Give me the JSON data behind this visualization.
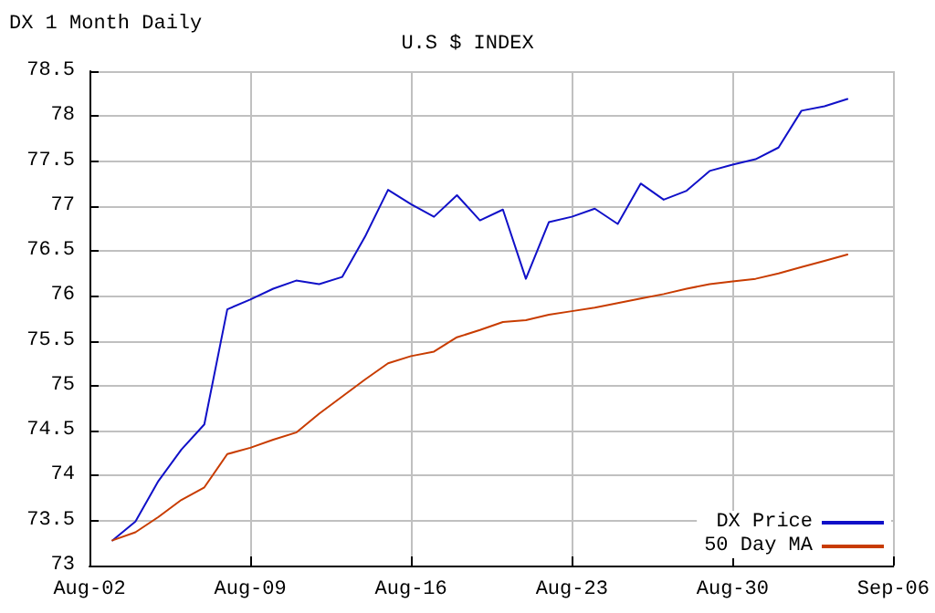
{
  "chart_data": {
    "type": "line",
    "title": "U.S $ INDEX",
    "subtitle": "DX 1 Month Daily",
    "x": [
      "--08-03",
      "--08-04",
      "--08-05",
      "--08-06",
      "--08-07",
      "--08-08",
      "--08-09",
      "--08-10",
      "--08-11",
      "--08-12",
      "--08-13",
      "--08-14",
      "--08-15",
      "--08-16",
      "--08-17",
      "--08-18",
      "--08-19",
      "--08-20",
      "--08-21",
      "--08-22",
      "--08-23",
      "--08-24",
      "--08-25",
      "--08-26",
      "--08-27",
      "--08-28",
      "--08-29",
      "--08-30",
      "--08-31",
      "--09-01",
      "--09-02",
      "--09-03",
      "--09-04"
    ],
    "series": [
      {
        "name": "DX Price",
        "color": "#1010c8",
        "values": [
          73.28,
          73.49,
          73.94,
          74.29,
          74.57,
          75.85,
          75.96,
          76.08,
          76.17,
          76.13,
          76.21,
          76.66,
          77.18,
          77.02,
          76.88,
          77.12,
          76.84,
          76.96,
          76.19,
          76.82,
          76.88,
          76.97,
          76.8,
          77.25,
          77.07,
          77.17,
          77.39,
          77.46,
          77.52,
          77.65,
          78.06,
          78.11,
          78.19
        ]
      },
      {
        "name": "50 Day MA",
        "color": "#c83c00",
        "values": [
          73.28,
          73.37,
          73.54,
          73.73,
          73.87,
          74.24,
          74.31,
          74.4,
          74.48,
          74.69,
          74.88,
          75.07,
          75.25,
          75.33,
          75.38,
          75.54,
          75.62,
          75.71,
          75.73,
          75.79,
          75.83,
          75.87,
          75.92,
          75.97,
          76.02,
          76.08,
          76.13,
          76.16,
          76.19,
          76.25,
          76.32,
          76.39,
          76.46
        ]
      }
    ],
    "xlim": [
      "--08-02",
      "--09-06"
    ],
    "xticks": [
      {
        "value": "--08-02",
        "label": "Aug-02"
      },
      {
        "value": "--08-09",
        "label": "Aug-09"
      },
      {
        "value": "--08-16",
        "label": "Aug-16"
      },
      {
        "value": "--08-23",
        "label": "Aug-23"
      },
      {
        "value": "--08-30",
        "label": "Aug-30"
      },
      {
        "value": "--09-06",
        "label": "Sep-06"
      }
    ],
    "ylim": [
      73,
      78.5
    ],
    "yticks": [
      73,
      {
        "value": 73.5,
        "label": "73.5"
      },
      74,
      {
        "value": 74.5,
        "label": "74.5"
      },
      75,
      {
        "value": 75.5,
        "label": "75.5"
      },
      76,
      {
        "value": 76.5,
        "label": "76.5"
      },
      77,
      {
        "value": 77.5,
        "label": "77.5"
      },
      78,
      {
        "value": 78.5,
        "label": "78.5"
      }
    ],
    "grid": true,
    "legend": "bottom right",
    "marker": "none",
    "line_style": "solid"
  }
}
